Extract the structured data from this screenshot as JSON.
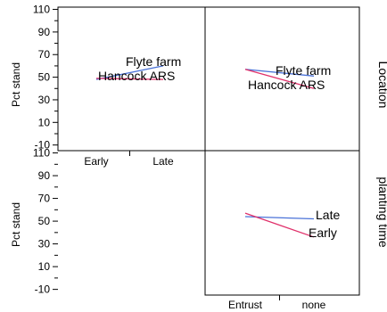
{
  "chart_data": [
    {
      "type": "line",
      "panel": "Location x planting time",
      "ylabel": "Pct stand",
      "strip": "Location",
      "categories": [
        "Early",
        "Late"
      ],
      "ylim": [
        -15,
        112
      ],
      "yticks": [
        110,
        90,
        70,
        50,
        30,
        10,
        -10
      ],
      "series": [
        {
          "name": "Flyte farm",
          "values": [
            48,
            60
          ],
          "color": "#4a72d8"
        },
        {
          "name": "Hancock ARS",
          "values": [
            49,
            48
          ],
          "color": "#e0306a"
        }
      ]
    },
    {
      "type": "line",
      "panel": "Location x fungicide",
      "categories": [
        "Entrust",
        "none"
      ],
      "series": [
        {
          "name": "Flyte farm",
          "values": [
            57,
            51
          ],
          "color": "#4a72d8"
        },
        {
          "name": "Hancock ARS",
          "values": [
            57,
            40
          ],
          "color": "#e0306a"
        }
      ]
    },
    {
      "type": "line",
      "panel": "planting time x fungicide",
      "ylabel": "Pct stand",
      "strip": "planting time",
      "categories": [
        "Entrust",
        "none"
      ],
      "ylim": [
        -15,
        112
      ],
      "yticks": [
        110,
        90,
        70,
        50,
        30,
        10,
        -10
      ],
      "series": [
        {
          "name": "Late",
          "values": [
            54,
            52
          ],
          "color": "#4a72d8"
        },
        {
          "name": "Early",
          "values": [
            57,
            36
          ],
          "color": "#e0306a"
        }
      ]
    }
  ]
}
